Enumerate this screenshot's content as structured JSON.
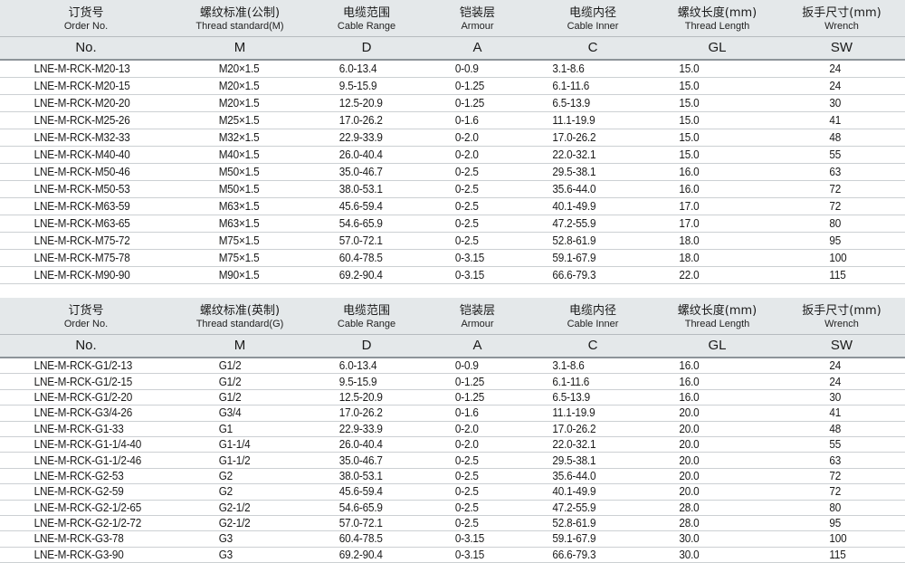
{
  "colors": {
    "header_bg": "#e4e8ea",
    "header_border": "#8d9499",
    "row_border": "#ccd0d3",
    "text": "#1a1a1a"
  },
  "tables": [
    {
      "id": "metric",
      "col_keys": [
        "order-no",
        "thread-standard",
        "cable-range",
        "armour",
        "cable-inner",
        "thread-length",
        "wrench"
      ],
      "columns": [
        {
          "zh": "订货号",
          "en": "Order No.",
          "sym": "No."
        },
        {
          "zh": "螺纹标准(公制)",
          "en": "Thread standard(M)",
          "sym": "M"
        },
        {
          "zh": "电缆范围",
          "en": "Cable Range",
          "sym": "D"
        },
        {
          "zh": "铠装层",
          "en": "Armour",
          "sym": "A"
        },
        {
          "zh": "电缆内径",
          "en": "Cable Inner",
          "sym": "C"
        },
        {
          "zh": "螺纹长度(mm)",
          "en": "Thread Length",
          "sym": "GL"
        },
        {
          "zh": "扳手尺寸(mm)",
          "en": "Wrench",
          "sym": "SW"
        }
      ],
      "rows": [
        [
          "LNE-M-RCK-M20-13",
          "M20×1.5",
          "6.0-13.4",
          "0-0.9",
          "3.1-8.6",
          "15.0",
          "24"
        ],
        [
          "LNE-M-RCK-M20-15",
          "M20×1.5",
          "9.5-15.9",
          "0-1.25",
          "6.1-11.6",
          "15.0",
          "24"
        ],
        [
          "LNE-M-RCK-M20-20",
          "M20×1.5",
          "12.5-20.9",
          "0-1.25",
          "6.5-13.9",
          "15.0",
          "30"
        ],
        [
          "LNE-M-RCK-M25-26",
          "M25×1.5",
          "17.0-26.2",
          "0-1.6",
          "11.1-19.9",
          "15.0",
          "41"
        ],
        [
          "LNE-M-RCK-M32-33",
          "M32×1.5",
          "22.9-33.9",
          "0-2.0",
          "17.0-26.2",
          "15.0",
          "48"
        ],
        [
          "LNE-M-RCK-M40-40",
          "M40×1.5",
          "26.0-40.4",
          "0-2.0",
          "22.0-32.1",
          "15.0",
          "55"
        ],
        [
          "LNE-M-RCK-M50-46",
          "M50×1.5",
          "35.0-46.7",
          "0-2.5",
          "29.5-38.1",
          "16.0",
          "63"
        ],
        [
          "LNE-M-RCK-M50-53",
          "M50×1.5",
          "38.0-53.1",
          "0-2.5",
          "35.6-44.0",
          "16.0",
          "72"
        ],
        [
          "LNE-M-RCK-M63-59",
          "M63×1.5",
          "45.6-59.4",
          "0-2.5",
          "40.1-49.9",
          "17.0",
          "72"
        ],
        [
          "LNE-M-RCK-M63-65",
          "M63×1.5",
          "54.6-65.9",
          "0-2.5",
          "47.2-55.9",
          "17.0",
          "80"
        ],
        [
          "LNE-M-RCK-M75-72",
          "M75×1.5",
          "57.0-72.1",
          "0-2.5",
          "52.8-61.9",
          "18.0",
          "95"
        ],
        [
          "LNE-M-RCK-M75-78",
          "M75×1.5",
          "60.4-78.5",
          "0-3.15",
          "59.1-67.9",
          "18.0",
          "100"
        ],
        [
          "LNE-M-RCK-M90-90",
          "M90×1.5",
          "69.2-90.4",
          "0-3.15",
          "66.6-79.3",
          "22.0",
          "115"
        ]
      ]
    },
    {
      "id": "inch",
      "col_keys": [
        "order-no",
        "thread-standard",
        "cable-range",
        "armour",
        "cable-inner",
        "thread-length",
        "wrench"
      ],
      "columns": [
        {
          "zh": "订货号",
          "en": "Order No.",
          "sym": "No."
        },
        {
          "zh": "螺纹标准(英制)",
          "en": "Thread standard(G)",
          "sym": "M"
        },
        {
          "zh": "电缆范围",
          "en": "Cable Range",
          "sym": "D"
        },
        {
          "zh": "铠装层",
          "en": "Armour",
          "sym": "A"
        },
        {
          "zh": "电缆内径",
          "en": "Cable Inner",
          "sym": "C"
        },
        {
          "zh": "螺纹长度(mm)",
          "en": "Thread Length",
          "sym": "GL"
        },
        {
          "zh": "扳手尺寸(mm)",
          "en": "Wrench",
          "sym": "SW"
        }
      ],
      "rows": [
        [
          "LNE-M-RCK-G1/2-13",
          "G1/2",
          "6.0-13.4",
          "0-0.9",
          "3.1-8.6",
          "16.0",
          "24"
        ],
        [
          "LNE-M-RCK-G1/2-15",
          "G1/2",
          "9.5-15.9",
          "0-1.25",
          "6.1-11.6",
          "16.0",
          "24"
        ],
        [
          "LNE-M-RCK-G1/2-20",
          "G1/2",
          "12.5-20.9",
          "0-1.25",
          "6.5-13.9",
          "16.0",
          "30"
        ],
        [
          "LNE-M-RCK-G3/4-26",
          "G3/4",
          "17.0-26.2",
          "0-1.6",
          "11.1-19.9",
          "20.0",
          "41"
        ],
        [
          "LNE-M-RCK-G1-33",
          "G1",
          "22.9-33.9",
          "0-2.0",
          "17.0-26.2",
          "20.0",
          "48"
        ],
        [
          "LNE-M-RCK-G1-1/4-40",
          "G1-1/4",
          "26.0-40.4",
          "0-2.0",
          "22.0-32.1",
          "20.0",
          "55"
        ],
        [
          "LNE-M-RCK-G1-1/2-46",
          "G1-1/2",
          "35.0-46.7",
          "0-2.5",
          "29.5-38.1",
          "20.0",
          "63"
        ],
        [
          "LNE-M-RCK-G2-53",
          "G2",
          "38.0-53.1",
          "0-2.5",
          "35.6-44.0",
          "20.0",
          "72"
        ],
        [
          "LNE-M-RCK-G2-59",
          "G2",
          "45.6-59.4",
          "0-2.5",
          "40.1-49.9",
          "20.0",
          "72"
        ],
        [
          "LNE-M-RCK-G2-1/2-65",
          "G2-1/2",
          "54.6-65.9",
          "0-2.5",
          "47.2-55.9",
          "28.0",
          "80"
        ],
        [
          "LNE-M-RCK-G2-1/2-72",
          "G2-1/2",
          "57.0-72.1",
          "0-2.5",
          "52.8-61.9",
          "28.0",
          "95"
        ],
        [
          "LNE-M-RCK-G3-78",
          "G3",
          "60.4-78.5",
          "0-3.15",
          "59.1-67.9",
          "30.0",
          "100"
        ],
        [
          "LNE-M-RCK-G3-90",
          "G3",
          "69.2-90.4",
          "0-3.15",
          "66.6-79.3",
          "30.0",
          "115"
        ]
      ]
    }
  ]
}
